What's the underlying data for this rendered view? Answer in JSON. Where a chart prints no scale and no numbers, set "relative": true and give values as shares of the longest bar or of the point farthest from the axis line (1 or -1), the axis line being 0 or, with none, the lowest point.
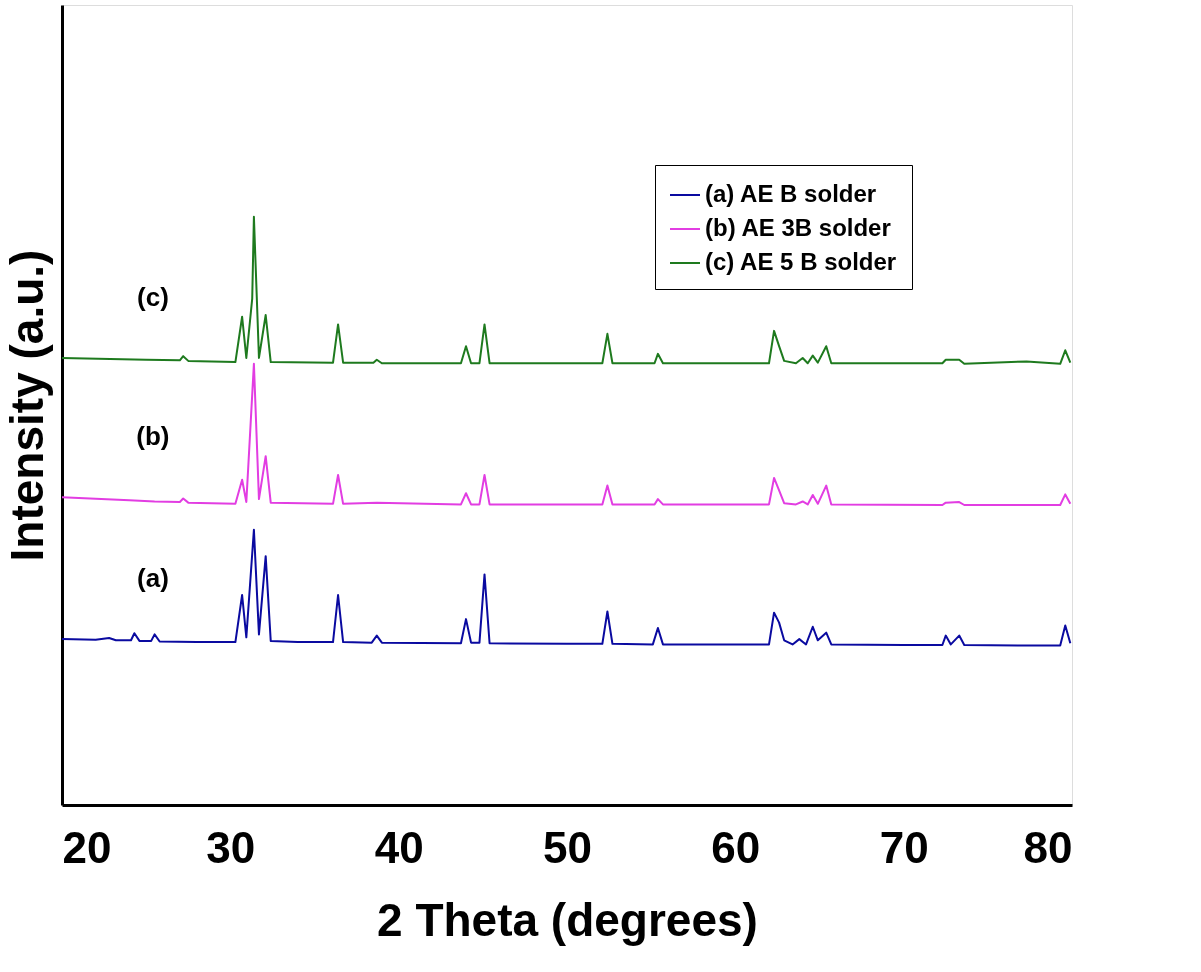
{
  "chart_data": {
    "type": "line",
    "xlabel": "2 Theta (degrees)",
    "ylabel": "Intensity (a.u.)",
    "relative": true,
    "xlim": [
      20,
      80
    ],
    "xticks": [
      20,
      30,
      40,
      50,
      60,
      70,
      80
    ],
    "legend": "top right",
    "grid": false,
    "marker": "none",
    "line_style": "solid",
    "annotations": [
      "(a)",
      "(b)",
      "(c)"
    ],
    "series": [
      {
        "name": "(a) AE B solder",
        "color": "#0a0aa0",
        "x": [
          20,
          22,
          22.8,
          23.2,
          24.1,
          24.3,
          24.6,
          25.3,
          25.5,
          25.8,
          28,
          30.3,
          30.7,
          30.95,
          31.4,
          31.7,
          32.1,
          32.4,
          34,
          36.1,
          36.4,
          36.7,
          38.4,
          38.7,
          39.0,
          43.7,
          44.0,
          44.3,
          44.8,
          45.1,
          45.4,
          50,
          52.1,
          52.4,
          52.7,
          55.1,
          55.4,
          55.7,
          60,
          62.0,
          62.3,
          62.6,
          62.9,
          63.4,
          63.8,
          64.2,
          64.6,
          64.9,
          65.4,
          65.7,
          70,
          72.3,
          72.5,
          72.8,
          73.3,
          73.6,
          77,
          79.3,
          79.6,
          79.9
        ],
        "values": [
          0.282,
          0.281,
          0.284,
          0.28,
          0.28,
          0.292,
          0.279,
          0.279,
          0.29,
          0.278,
          0.277,
          0.277,
          0.357,
          0.285,
          0.468,
          0.29,
          0.423,
          0.279,
          0.277,
          0.277,
          0.357,
          0.277,
          0.276,
          0.288,
          0.276,
          0.275,
          0.316,
          0.276,
          0.276,
          0.392,
          0.275,
          0.274,
          0.274,
          0.329,
          0.274,
          0.273,
          0.301,
          0.273,
          0.273,
          0.273,
          0.327,
          0.31,
          0.28,
          0.273,
          0.282,
          0.273,
          0.303,
          0.28,
          0.293,
          0.273,
          0.272,
          0.272,
          0.288,
          0.273,
          0.288,
          0.272,
          0.271,
          0.271,
          0.305,
          0.275
        ]
      },
      {
        "name": "(b) AE 3B solder",
        "color": "#e23de2",
        "x": [
          20,
          24,
          25.5,
          27.0,
          27.2,
          27.5,
          30.3,
          30.7,
          30.95,
          31.4,
          31.7,
          32.1,
          32.4,
          36.1,
          36.4,
          36.7,
          38.7,
          43.7,
          44.0,
          44.3,
          44.8,
          45.1,
          45.4,
          52.1,
          52.4,
          52.7,
          55.2,
          55.4,
          55.7,
          62.0,
          62.3,
          62.6,
          62.9,
          63.6,
          64.0,
          64.3,
          64.6,
          64.9,
          65.4,
          65.7,
          72.3,
          72.5,
          73.3,
          73.6,
          79.3,
          79.6,
          79.9
        ],
        "values": [
          0.523,
          0.518,
          0.516,
          0.515,
          0.521,
          0.514,
          0.512,
          0.553,
          0.515,
          0.75,
          0.52,
          0.593,
          0.514,
          0.512,
          0.561,
          0.512,
          0.514,
          0.511,
          0.53,
          0.511,
          0.511,
          0.561,
          0.511,
          0.511,
          0.543,
          0.511,
          0.511,
          0.52,
          0.511,
          0.511,
          0.556,
          0.535,
          0.513,
          0.511,
          0.516,
          0.511,
          0.527,
          0.512,
          0.543,
          0.511,
          0.51,
          0.514,
          0.515,
          0.51,
          0.51,
          0.528,
          0.512
        ]
      },
      {
        "name": "(c) AE 5 B solder",
        "color": "#1e7a1e",
        "x": [
          20,
          25,
          27.0,
          27.2,
          27.5,
          30.3,
          30.7,
          30.95,
          31.3,
          31.4,
          31.7,
          32.1,
          32.4,
          36.1,
          36.4,
          36.7,
          38.5,
          38.7,
          39.0,
          43.7,
          44.0,
          44.3,
          44.8,
          45.1,
          45.4,
          52.1,
          52.4,
          52.7,
          55.2,
          55.4,
          55.7,
          62.0,
          62.3,
          62.6,
          62.9,
          63.6,
          64.0,
          64.3,
          64.6,
          64.9,
          65.4,
          65.7,
          72.3,
          72.5,
          73.3,
          73.6,
          77.3,
          79.3,
          79.6,
          79.9
        ],
        "values": [
          0.76,
          0.757,
          0.756,
          0.763,
          0.755,
          0.753,
          0.83,
          0.76,
          0.861,
          1.0,
          0.76,
          0.833,
          0.753,
          0.752,
          0.817,
          0.752,
          0.752,
          0.757,
          0.751,
          0.751,
          0.78,
          0.751,
          0.751,
          0.817,
          0.751,
          0.751,
          0.801,
          0.751,
          0.751,
          0.767,
          0.751,
          0.751,
          0.806,
          0.78,
          0.755,
          0.751,
          0.76,
          0.751,
          0.764,
          0.752,
          0.78,
          0.751,
          0.751,
          0.757,
          0.757,
          0.75,
          0.754,
          0.75,
          0.773,
          0.752
        ]
      }
    ]
  }
}
